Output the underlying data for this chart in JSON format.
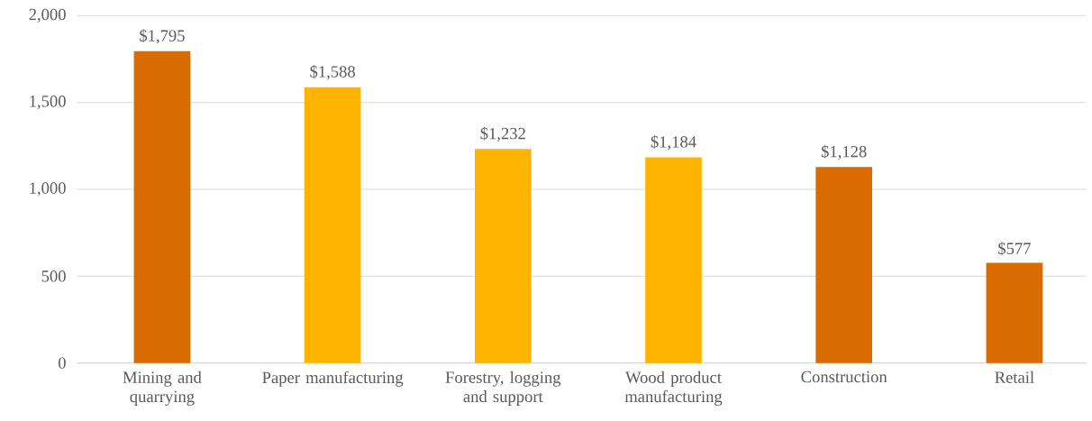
{
  "chart_data": {
    "type": "bar",
    "categories": [
      "Mining and quarrying",
      "Paper manufacturing",
      "Forestry, logging and support",
      "Wood product manufacturing",
      "Construction",
      "Retail"
    ],
    "values": [
      1795,
      1588,
      1232,
      1184,
      1128,
      577
    ],
    "colors": [
      "#d96b00",
      "#ffb500",
      "#ffb500",
      "#ffb500",
      "#d96b00",
      "#d96b00"
    ],
    "value_labels": [
      "$1,795",
      "$1,588",
      "$1,232",
      "$1,184",
      "$1,128",
      "$577"
    ],
    "ylim": [
      0,
      2000
    ],
    "yticks": [
      {
        "value": 0,
        "label": "0"
      },
      {
        "value": 500,
        "label": "500"
      },
      {
        "value": 1000,
        "label": "1,000"
      },
      {
        "value": 1500,
        "label": "1,500"
      },
      {
        "value": 2000,
        "label": "2,000"
      }
    ],
    "grid": "y"
  }
}
